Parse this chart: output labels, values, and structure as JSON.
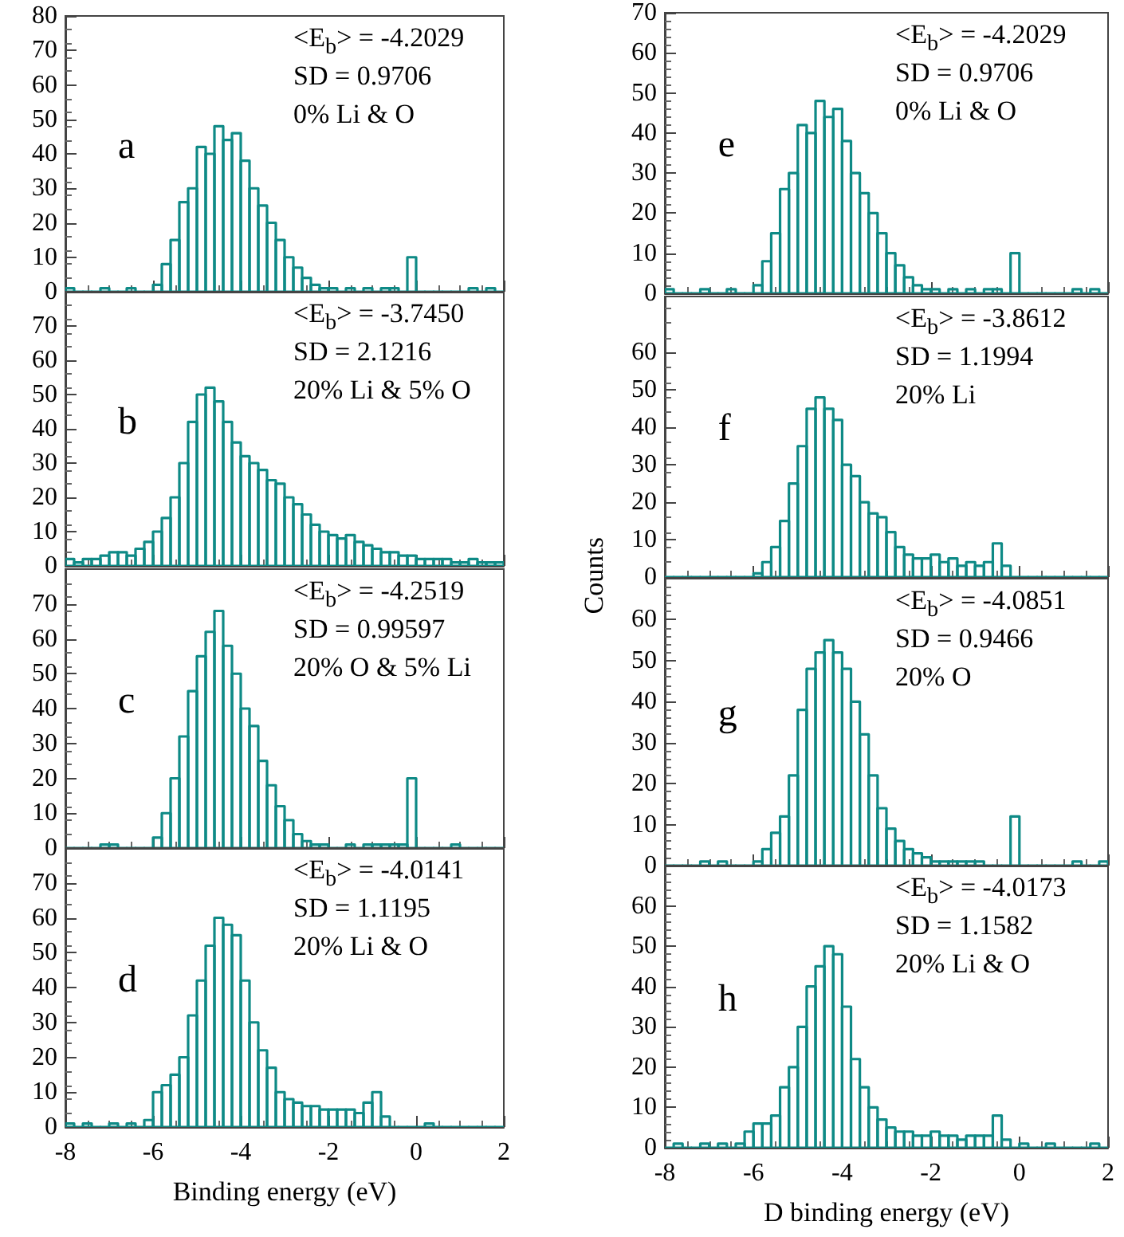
{
  "chart_data": [
    {
      "type": "histogram",
      "title": "a",
      "annotations": [
        "<E$_{b}$> = -4.2029",
        "SD = 0.9706",
        "0% Li & O"
      ],
      "color": "#0e8a86",
      "bins": [
        -8,
        -7.8,
        -7.6,
        -7.4,
        -7.2,
        -7,
        -6.8,
        -6.6,
        -6.4,
        -6.2,
        -6,
        -5.8,
        -5.6,
        -5.4,
        -5.2,
        -5,
        -4.8,
        -4.6,
        -4.4,
        -4.2,
        -4,
        -3.8,
        -3.6,
        -3.4,
        -3.2,
        -3,
        -2.8,
        -2.6,
        -2.4,
        -2.2,
        -2,
        -1.8,
        -1.6,
        -1.4,
        -1.2,
        -1,
        -0.8,
        -0.6,
        -0.4,
        -0.2,
        0,
        0.2,
        0.4,
        0.6,
        0.8,
        1,
        1.2,
        1.4,
        1.6,
        1.8,
        2
      ],
      "values": [
        1,
        0,
        0,
        0,
        1,
        0,
        0,
        1,
        0,
        0,
        2,
        8,
        15,
        26,
        30,
        42,
        40,
        48,
        44,
        46,
        38,
        30,
        25,
        20,
        15,
        10,
        7,
        4,
        2,
        1,
        1,
        0,
        1,
        0,
        1,
        0,
        1,
        1,
        0,
        10,
        0,
        0,
        0,
        0,
        0,
        0,
        1,
        0,
        1,
        0
      ],
      "xlim": [
        -8,
        2
      ],
      "xticks": [
        -8,
        -6,
        -4,
        -2,
        0,
        2
      ],
      "ylim": [
        0,
        80
      ],
      "yticks": [
        0,
        10,
        20,
        30,
        40,
        50,
        60,
        70,
        80
      ],
      "tick_labels": "y"
    },
    {
      "type": "histogram",
      "title": "b",
      "annotations": [
        "<E$_{b}$> = -3.7450",
        "SD = 2.1216",
        "20% Li & 5% O"
      ],
      "color": "#0e8a86",
      "bins": [
        -8,
        -7.8,
        -7.6,
        -7.4,
        -7.2,
        -7,
        -6.8,
        -6.6,
        -6.4,
        -6.2,
        -6,
        -5.8,
        -5.6,
        -5.4,
        -5.2,
        -5,
        -4.8,
        -4.6,
        -4.4,
        -4.2,
        -4,
        -3.8,
        -3.6,
        -3.4,
        -3.2,
        -3,
        -2.8,
        -2.6,
        -2.4,
        -2.2,
        -2,
        -1.8,
        -1.6,
        -1.4,
        -1.2,
        -1,
        -0.8,
        -0.6,
        -0.4,
        -0.2,
        0,
        0.2,
        0.4,
        0.6,
        0.8,
        1,
        1.2,
        1.4,
        1.6,
        1.8,
        2
      ],
      "values": [
        2,
        1,
        2,
        2,
        3,
        4,
        4,
        3,
        5,
        7,
        10,
        14,
        20,
        30,
        42,
        50,
        52,
        48,
        42,
        36,
        32,
        30,
        28,
        25,
        24,
        20,
        18,
        15,
        12,
        10,
        9,
        8,
        9,
        7,
        6,
        5,
        4,
        4,
        3,
        3,
        2,
        2,
        2,
        2,
        1,
        1,
        2,
        1,
        1,
        1
      ],
      "xlim": [
        -8,
        2
      ],
      "xticks": [
        -8,
        -6,
        -4,
        -2,
        0,
        2
      ],
      "ylim": [
        0,
        80
      ],
      "yticks": [
        0,
        10,
        20,
        30,
        40,
        50,
        60,
        70
      ],
      "tick_labels": "y"
    },
    {
      "type": "histogram",
      "title": "c",
      "annotations": [
        "<E$_{b}$> = -4.2519",
        "SD = 0.99597",
        "20% O & 5% Li"
      ],
      "color": "#0e8a86",
      "bins": [
        -8,
        -7.8,
        -7.6,
        -7.4,
        -7.2,
        -7,
        -6.8,
        -6.6,
        -6.4,
        -6.2,
        -6,
        -5.8,
        -5.6,
        -5.4,
        -5.2,
        -5,
        -4.8,
        -4.6,
        -4.4,
        -4.2,
        -4,
        -3.8,
        -3.6,
        -3.4,
        -3.2,
        -3,
        -2.8,
        -2.6,
        -2.4,
        -2.2,
        -2,
        -1.8,
        -1.6,
        -1.4,
        -1.2,
        -1,
        -0.8,
        -0.6,
        -0.4,
        -0.2,
        0,
        0.2,
        0.4,
        0.6,
        0.8,
        1,
        1.2,
        1.4,
        1.6,
        1.8,
        2
      ],
      "values": [
        0,
        0,
        0,
        0,
        1,
        1,
        0,
        0,
        0,
        0,
        3,
        10,
        20,
        32,
        45,
        55,
        62,
        68,
        58,
        50,
        40,
        35,
        25,
        18,
        12,
        8,
        4,
        2,
        1,
        1,
        0,
        0,
        1,
        0,
        1,
        1,
        1,
        1,
        1,
        20,
        0,
        0,
        0,
        0,
        1,
        0,
        0,
        0,
        0,
        0
      ],
      "xlim": [
        -8,
        2
      ],
      "xticks": [
        -8,
        -6,
        -4,
        -2,
        0,
        2
      ],
      "ylim": [
        0,
        80
      ],
      "yticks": [
        0,
        10,
        20,
        30,
        40,
        50,
        60,
        70
      ],
      "tick_labels": "y"
    },
    {
      "type": "histogram",
      "title": "d",
      "xlabel": "Binding energy (eV)",
      "annotations": [
        "<E$_{b}$> = -4.0141",
        "SD = 1.1195",
        "20% Li & O"
      ],
      "color": "#0e8a86",
      "bins": [
        -8,
        -7.8,
        -7.6,
        -7.4,
        -7.2,
        -7,
        -6.8,
        -6.6,
        -6.4,
        -6.2,
        -6,
        -5.8,
        -5.6,
        -5.4,
        -5.2,
        -5,
        -4.8,
        -4.6,
        -4.4,
        -4.2,
        -4,
        -3.8,
        -3.6,
        -3.4,
        -3.2,
        -3,
        -2.8,
        -2.6,
        -2.4,
        -2.2,
        -2,
        -1.8,
        -1.6,
        -1.4,
        -1.2,
        -1,
        -0.8,
        -0.6,
        -0.4,
        -0.2,
        0,
        0.2,
        0.4,
        0.6,
        0.8,
        1,
        1.2,
        1.4,
        1.6,
        1.8,
        2
      ],
      "values": [
        1,
        0,
        1,
        0,
        0,
        1,
        0,
        1,
        0,
        2,
        10,
        12,
        15,
        20,
        32,
        42,
        52,
        60,
        58,
        55,
        42,
        30,
        22,
        17,
        10,
        8,
        7,
        6,
        6,
        5,
        5,
        5,
        5,
        4,
        7,
        10,
        3,
        0,
        0,
        0,
        0,
        1,
        0,
        0,
        0,
        0,
        0,
        0,
        0,
        0
      ],
      "xlim": [
        -8,
        2
      ],
      "xticks": [
        -8,
        -6,
        -4,
        -2,
        0,
        2
      ],
      "ylim": [
        0,
        80
      ],
      "yticks": [
        0,
        10,
        20,
        30,
        40,
        50,
        60,
        70
      ]
    },
    {
      "type": "histogram",
      "title": "e",
      "annotations": [
        "<E$_{b}$> = -4.2029",
        "SD = 0.9706",
        "0% Li & O"
      ],
      "color": "#0e8a86",
      "bins": [
        -8,
        -7.8,
        -7.6,
        -7.4,
        -7.2,
        -7,
        -6.8,
        -6.6,
        -6.4,
        -6.2,
        -6,
        -5.8,
        -5.6,
        -5.4,
        -5.2,
        -5,
        -4.8,
        -4.6,
        -4.4,
        -4.2,
        -4,
        -3.8,
        -3.6,
        -3.4,
        -3.2,
        -3,
        -2.8,
        -2.6,
        -2.4,
        -2.2,
        -2,
        -1.8,
        -1.6,
        -1.4,
        -1.2,
        -1,
        -0.8,
        -0.6,
        -0.4,
        -0.2,
        0,
        0.2,
        0.4,
        0.6,
        0.8,
        1,
        1.2,
        1.4,
        1.6,
        1.8,
        2
      ],
      "values": [
        1,
        0,
        0,
        0,
        1,
        0,
        0,
        1,
        0,
        0,
        2,
        8,
        15,
        26,
        30,
        42,
        40,
        48,
        44,
        46,
        38,
        30,
        25,
        20,
        15,
        10,
        7,
        4,
        2,
        1,
        1,
        0,
        1,
        0,
        1,
        0,
        1,
        1,
        0,
        10,
        0,
        0,
        0,
        0,
        0,
        0,
        1,
        0,
        1,
        0
      ],
      "xlim": [
        -8,
        2
      ],
      "xticks": [
        -8,
        -6,
        -4,
        -2,
        0,
        2
      ],
      "ylim": [
        0,
        70
      ],
      "yticks": [
        0,
        10,
        20,
        30,
        40,
        50,
        60,
        70
      ],
      "tick_labels": "y"
    },
    {
      "type": "histogram",
      "title": "f",
      "ylabel": "Counts",
      "annotations": [
        "<E$_{b}$> = -3.8612",
        "SD = 1.1994",
        "20% Li"
      ],
      "color": "#0e8a86",
      "bins": [
        -8,
        -7.8,
        -7.6,
        -7.4,
        -7.2,
        -7,
        -6.8,
        -6.6,
        -6.4,
        -6.2,
        -6,
        -5.8,
        -5.6,
        -5.4,
        -5.2,
        -5,
        -4.8,
        -4.6,
        -4.4,
        -4.2,
        -4,
        -3.8,
        -3.6,
        -3.4,
        -3.2,
        -3,
        -2.8,
        -2.6,
        -2.4,
        -2.2,
        -2,
        -1.8,
        -1.6,
        -1.4,
        -1.2,
        -1,
        -0.8,
        -0.6,
        -0.4,
        -0.2,
        0,
        0.2,
        0.4,
        0.6,
        0.8,
        1,
        1.2,
        1.4,
        1.6,
        1.8,
        2
      ],
      "values": [
        0,
        0,
        0,
        0,
        0,
        0,
        0,
        0,
        0,
        0,
        1,
        4,
        8,
        15,
        25,
        35,
        45,
        48,
        45,
        42,
        30,
        27,
        20,
        17,
        16,
        12,
        8,
        6,
        5,
        5,
        6,
        4,
        5,
        3,
        4,
        3,
        4,
        9,
        3,
        0,
        0,
        0,
        0,
        0,
        0,
        0,
        0,
        0,
        0,
        0
      ],
      "xlim": [
        -8,
        2
      ],
      "xticks": [
        -8,
        -6,
        -4,
        -2,
        0,
        2
      ],
      "ylim": [
        0,
        75
      ],
      "yticks": [
        0,
        10,
        20,
        30,
        40,
        50,
        60
      ],
      "tick_labels": "y"
    },
    {
      "type": "histogram",
      "title": "g",
      "annotations": [
        "<E$_{b}$> = -4.0851",
        "SD = 0.9466",
        "20% O"
      ],
      "color": "#0e8a86",
      "bins": [
        -8,
        -7.8,
        -7.6,
        -7.4,
        -7.2,
        -7,
        -6.8,
        -6.6,
        -6.4,
        -6.2,
        -6,
        -5.8,
        -5.6,
        -5.4,
        -5.2,
        -5,
        -4.8,
        -4.6,
        -4.4,
        -4.2,
        -4,
        -3.8,
        -3.6,
        -3.4,
        -3.2,
        -3,
        -2.8,
        -2.6,
        -2.4,
        -2.2,
        -2,
        -1.8,
        -1.6,
        -1.4,
        -1.2,
        -1,
        -0.8,
        -0.6,
        -0.4,
        -0.2,
        0,
        0.2,
        0.4,
        0.6,
        0.8,
        1,
        1.2,
        1.4,
        1.6,
        1.8,
        2
      ],
      "values": [
        0,
        0,
        0,
        0,
        1,
        0,
        1,
        0,
        0,
        0,
        1,
        4,
        8,
        12,
        22,
        38,
        48,
        52,
        55,
        52,
        48,
        40,
        32,
        22,
        14,
        9,
        6,
        4,
        3,
        2,
        1,
        1,
        1,
        1,
        1,
        1,
        0,
        0,
        0,
        12,
        0,
        0,
        0,
        0,
        0,
        0,
        1,
        0,
        0,
        1
      ],
      "xlim": [
        -8,
        2
      ],
      "xticks": [
        -8,
        -6,
        -4,
        -2,
        0,
        2
      ],
      "ylim": [
        0,
        70
      ],
      "yticks": [
        0,
        10,
        20,
        30,
        40,
        50,
        60
      ],
      "tick_labels": "y"
    },
    {
      "type": "histogram",
      "title": "h",
      "xlabel": "D binding energy (eV)",
      "annotations": [
        "<E$_{b}$> = -4.0173",
        "SD = 1.1582",
        "20% Li & O"
      ],
      "color": "#0e8a86",
      "bins": [
        -8,
        -7.8,
        -7.6,
        -7.4,
        -7.2,
        -7,
        -6.8,
        -6.6,
        -6.4,
        -6.2,
        -6,
        -5.8,
        -5.6,
        -5.4,
        -5.2,
        -5,
        -4.8,
        -4.6,
        -4.4,
        -4.2,
        -4,
        -3.8,
        -3.6,
        -3.4,
        -3.2,
        -3,
        -2.8,
        -2.6,
        -2.4,
        -2.2,
        -2,
        -1.8,
        -1.6,
        -1.4,
        -1.2,
        -1,
        -0.8,
        -0.6,
        -0.4,
        -0.2,
        0,
        0.2,
        0.4,
        0.6,
        0.8,
        1,
        1.2,
        1.4,
        1.6,
        1.8,
        2
      ],
      "values": [
        0,
        1,
        0,
        0,
        1,
        0,
        1,
        0,
        1,
        4,
        6,
        6,
        8,
        15,
        20,
        30,
        40,
        45,
        50,
        48,
        35,
        22,
        15,
        10,
        7,
        5,
        4,
        4,
        3,
        3,
        4,
        3,
        3,
        2,
        3,
        3,
        3,
        8,
        2,
        0,
        1,
        0,
        0,
        1,
        0,
        0,
        0,
        0,
        1,
        0
      ],
      "xlim": [
        -8,
        2
      ],
      "xticks": [
        -8,
        -6,
        -4,
        -2,
        0,
        2
      ],
      "ylim": [
        0,
        70
      ],
      "yticks": [
        0,
        10,
        20,
        30,
        40,
        50,
        60
      ]
    }
  ]
}
